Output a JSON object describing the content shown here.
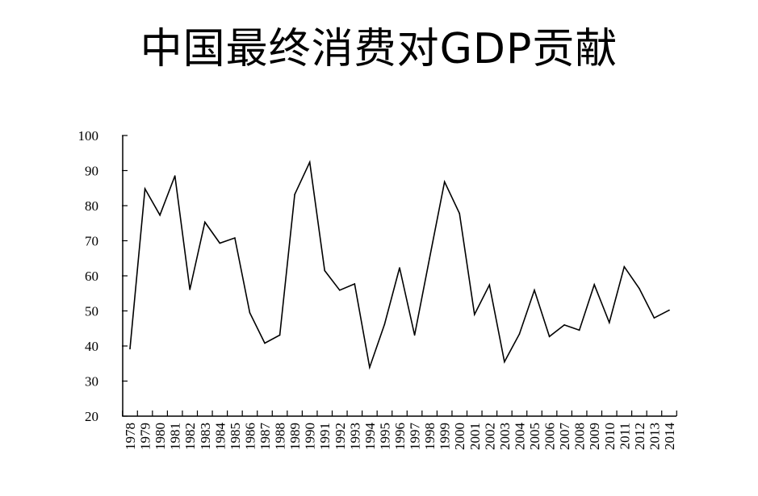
{
  "chart_data": {
    "type": "line",
    "title": "中国最终消费对GDP贡献",
    "xlabel": "",
    "ylabel": "",
    "ylim": [
      20,
      100
    ],
    "yticks": [
      "100",
      "90",
      "80",
      "70",
      "60",
      "50",
      "40",
      "30",
      "20"
    ],
    "grid": false,
    "legend": "none",
    "line_color": "#000000",
    "x": [
      "1978",
      "1979",
      "1980",
      "1981",
      "1982",
      "1983",
      "1984",
      "1985",
      "1986",
      "1987",
      "1988",
      "1989",
      "1990",
      "1991",
      "1992",
      "1993",
      "1994",
      "1995",
      "1996",
      "1997",
      "1998",
      "1999",
      "2000",
      "2001",
      "2002",
      "2003",
      "2004",
      "2005",
      "2006",
      "2007",
      "2008",
      "2009",
      "2010",
      "2011",
      "2012",
      "2013",
      "2014"
    ],
    "series": [
      {
        "values": [
          39.2,
          84.8,
          77.3,
          88.5,
          56.1,
          75.3,
          69.3,
          70.8,
          49.5,
          40.8,
          43.1,
          83.2,
          92.4,
          61.5,
          55.9,
          57.7,
          33.9,
          46.2,
          62.3,
          43.1,
          65.0,
          86.8,
          77.8,
          49.0,
          57.4,
          35.5,
          43.4,
          55.9,
          42.7,
          46.0,
          44.5,
          57.5,
          46.7,
          62.6,
          56.4,
          48.0,
          50.2
        ]
      }
    ]
  }
}
